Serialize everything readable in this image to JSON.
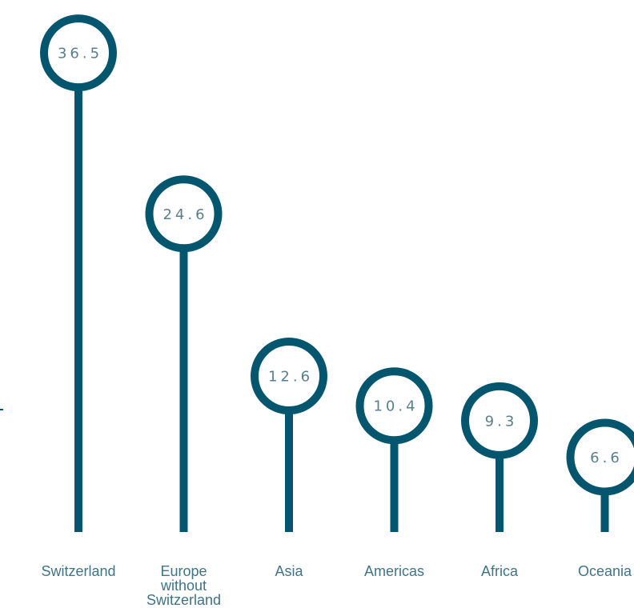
{
  "chart_data": {
    "type": "lollipop",
    "categories": [
      [
        "Switzerland"
      ],
      [
        "Europe",
        "without",
        "Switzerland"
      ],
      [
        "Asia"
      ],
      [
        "Americas"
      ],
      [
        "Africa"
      ],
      [
        "Oceania"
      ]
    ],
    "values": [
      36.5,
      24.6,
      12.6,
      10.4,
      9.3,
      6.6
    ],
    "value_labels": [
      "36.5",
      "24.6",
      "12.6",
      "10.4",
      "9.3",
      "6.6"
    ],
    "ylim": [
      0,
      40
    ],
    "grid": false,
    "legend": "none"
  },
  "colors": {
    "mark": "#04566f",
    "value_text": "#5a7f8c",
    "category_text": "#3f7486"
  }
}
